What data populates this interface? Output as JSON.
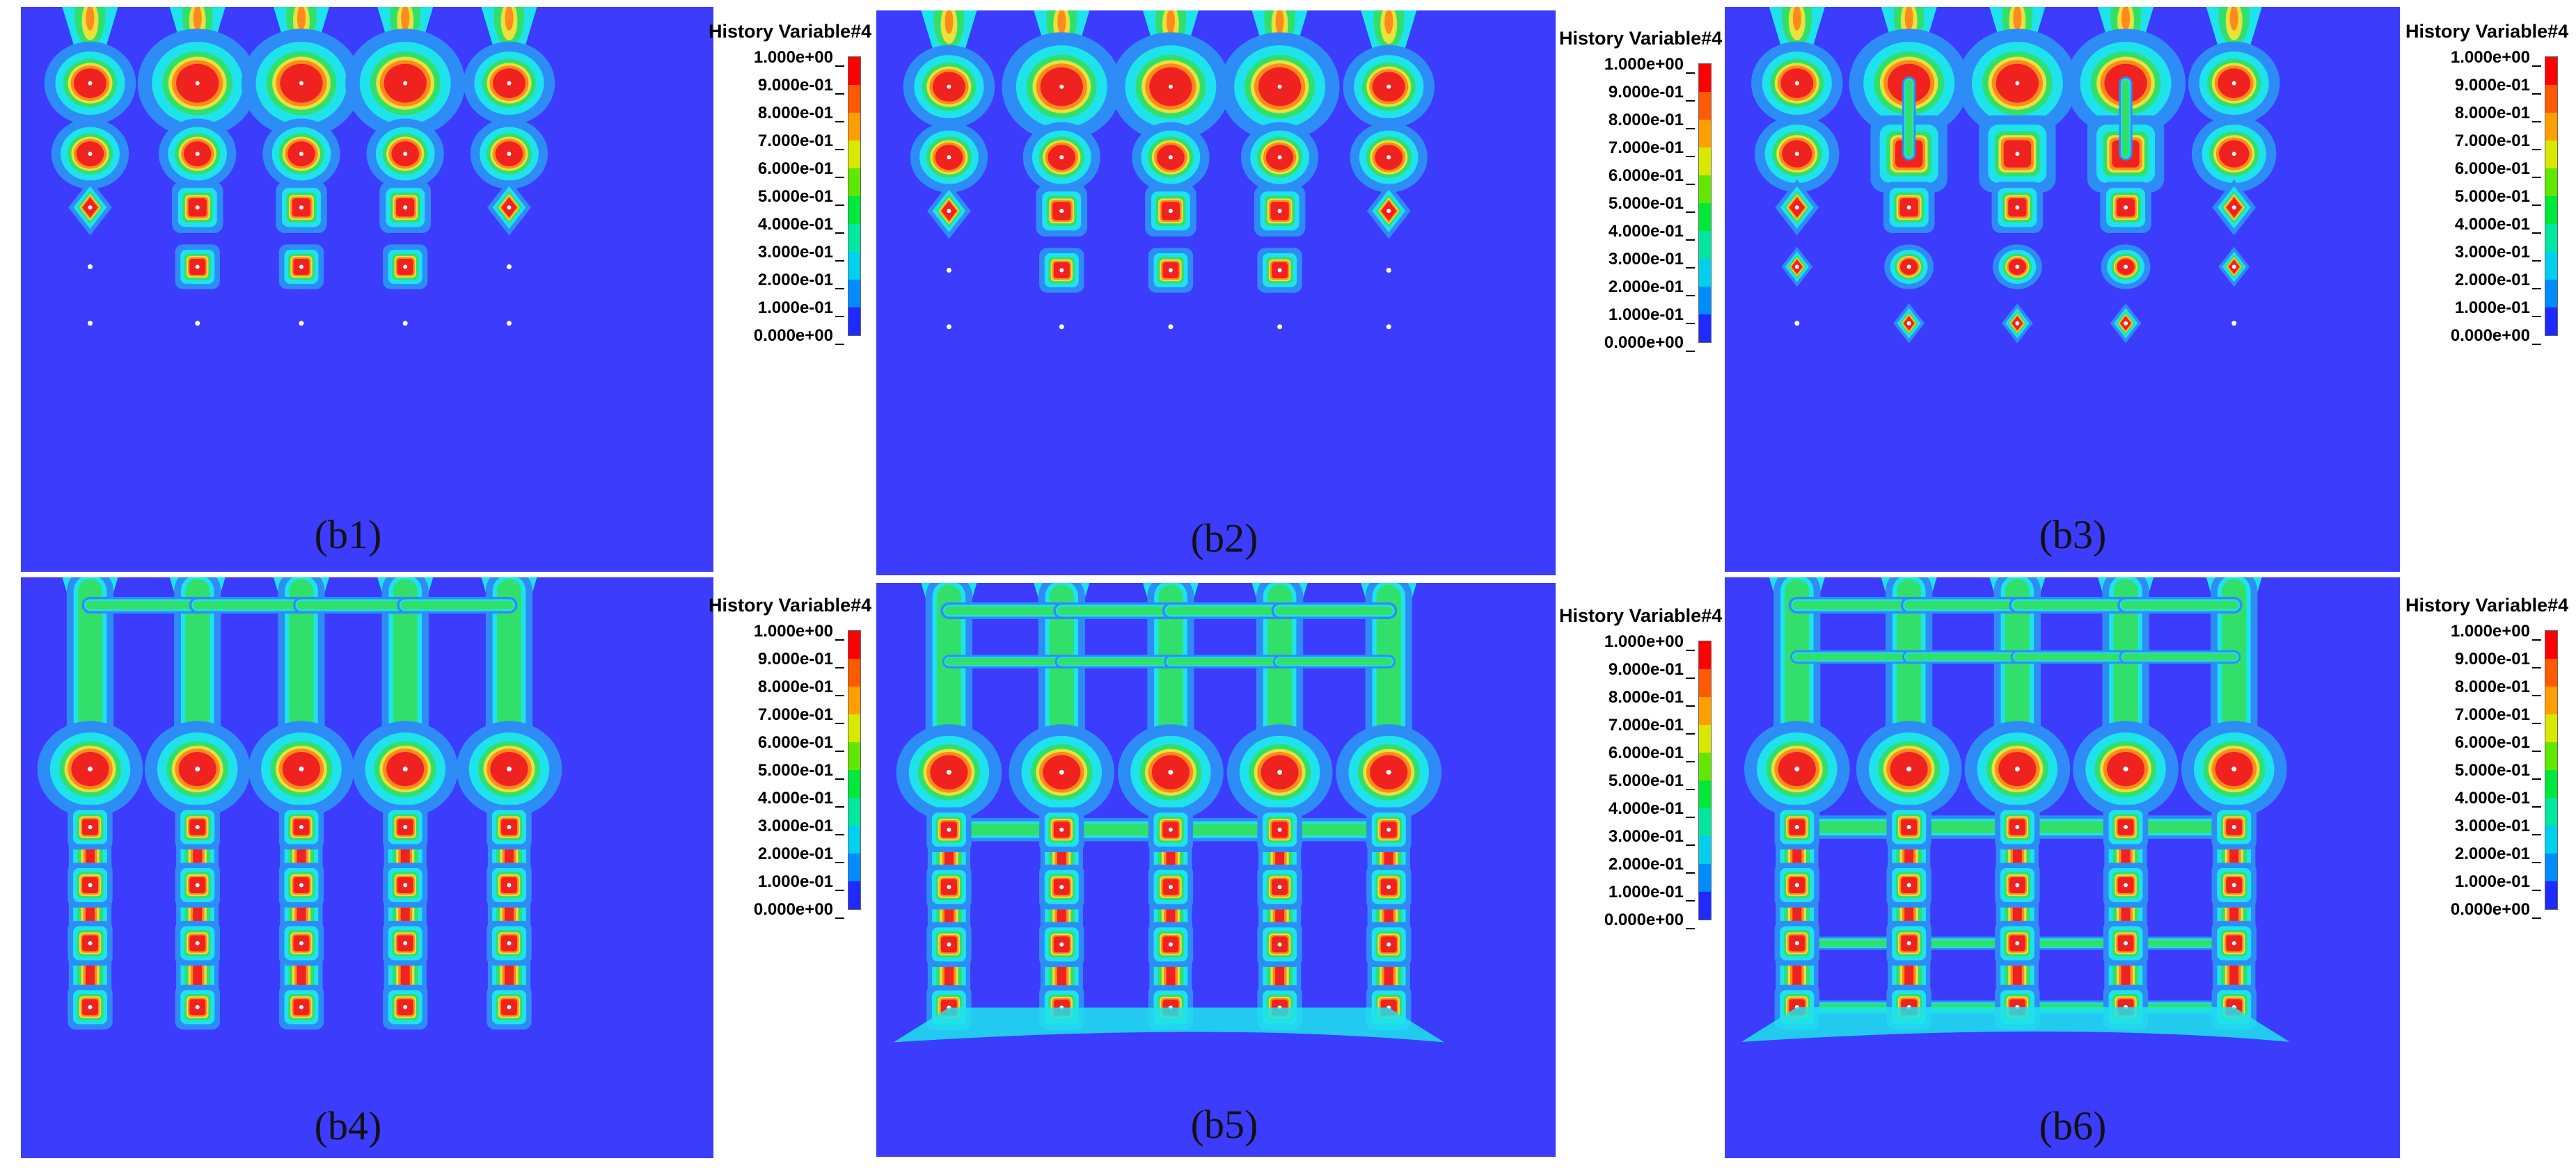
{
  "legend": {
    "title": "History Variable#4",
    "ticks": [
      "1.000e+00",
      "9.000e-01",
      "8.000e-01",
      "7.000e-01",
      "6.000e-01",
      "5.000e-01",
      "4.000e-01",
      "3.000e-01",
      "2.000e-01",
      "1.000e-01",
      "0.000e+00"
    ],
    "colors": [
      "#ff0000",
      "#ff5a00",
      "#ff9e00",
      "#d8e800",
      "#62e800",
      "#00e83a",
      "#00e8a0",
      "#00d0ee",
      "#008cff",
      "#1e2aff"
    ]
  },
  "colors": {
    "background": "#3c3cfc",
    "halo": "#2e8cf7",
    "cyan": "#1fe3ec",
    "green": "#30e06a",
    "yellow": "#e8e23a",
    "orange": "#ff8a1e",
    "red": "#f0221f",
    "dot": "#ffffff"
  },
  "panels": [
    {
      "label": "(b1)",
      "stage": 1
    },
    {
      "label": "(b2)",
      "stage": 2
    },
    {
      "label": "(b3)",
      "stage": 3
    },
    {
      "label": "(b4)",
      "stage": 4
    },
    {
      "label": "(b5)",
      "stage": 5
    },
    {
      "label": "(b6)",
      "stage": 6
    }
  ]
}
